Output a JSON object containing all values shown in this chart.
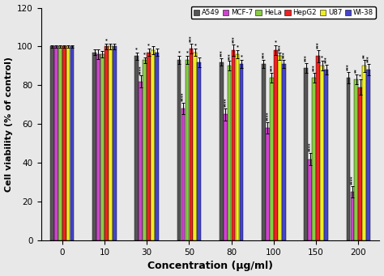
{
  "concentrations": [
    0,
    10,
    30,
    50,
    80,
    100,
    150,
    200
  ],
  "cell_lines": [
    "A549",
    "MCF-7",
    "HeLa",
    "HepG2",
    "U87",
    "WI-38"
  ],
  "colors": [
    "#555555",
    "#cc44cc",
    "#88cc44",
    "#ee2222",
    "#eeee22",
    "#4444cc"
  ],
  "values": {
    "A549": [
      100,
      97,
      95,
      93,
      92,
      91,
      89,
      84
    ],
    "MCF-7": [
      100,
      96,
      82,
      68,
      65,
      58,
      42,
      25
    ],
    "HeLa": [
      100,
      96,
      93,
      93,
      90,
      84,
      84,
      83
    ],
    "HepG2": [
      100,
      100,
      97,
      99,
      98,
      98,
      95,
      79
    ],
    "U87": [
      100,
      100,
      98,
      97,
      96,
      95,
      90,
      90
    ],
    "WI-38": [
      100,
      100,
      97,
      92,
      91,
      91,
      88,
      88
    ]
  },
  "errors": {
    "A549": [
      0.5,
      1.5,
      2.0,
      2.0,
      2.0,
      2.0,
      2.5,
      3.0
    ],
    "MCF-7": [
      0.5,
      2.5,
      3.0,
      3.0,
      3.0,
      3.0,
      3.0,
      3.0
    ],
    "HeLa": [
      0.5,
      1.5,
      1.5,
      2.0,
      2.5,
      2.5,
      2.5,
      2.5
    ],
    "HepG2": [
      0.5,
      1.5,
      2.0,
      2.5,
      3.0,
      2.5,
      3.0,
      4.0
    ],
    "U87": [
      0.5,
      1.5,
      2.0,
      2.0,
      2.0,
      2.0,
      2.5,
      3.0
    ],
    "WI-38": [
      0.5,
      1.5,
      2.0,
      2.5,
      2.0,
      2.0,
      2.5,
      3.0
    ]
  },
  "significance": {
    "A549": [
      "",
      "",
      "*",
      "*",
      "***",
      "***",
      "***",
      "***"
    ],
    "MCF-7": [
      "",
      "",
      "****",
      "****",
      "****",
      "****",
      "****",
      "****"
    ],
    "HeLa": [
      "",
      "",
      "*",
      "*",
      "***",
      "***",
      "***",
      "**"
    ],
    "HepG2": [
      "",
      "*",
      "*",
      "***",
      "***",
      "*",
      "***",
      "*"
    ],
    "U87": [
      "",
      "",
      "",
      "*",
      "*",
      "***",
      "*",
      "**"
    ],
    "WI-38": [
      "",
      "",
      "",
      "",
      "*",
      "***",
      "***",
      "***"
    ]
  },
  "ylabel": "Cell viability (% of control)",
  "xlabel": "Concentration (μg/ml)",
  "ylim": [
    0,
    120
  ],
  "yticks": [
    0,
    20,
    40,
    60,
    80,
    100,
    120
  ],
  "bg_color": "#e8e8e8",
  "fig_width": 4.74,
  "fig_height": 3.41
}
